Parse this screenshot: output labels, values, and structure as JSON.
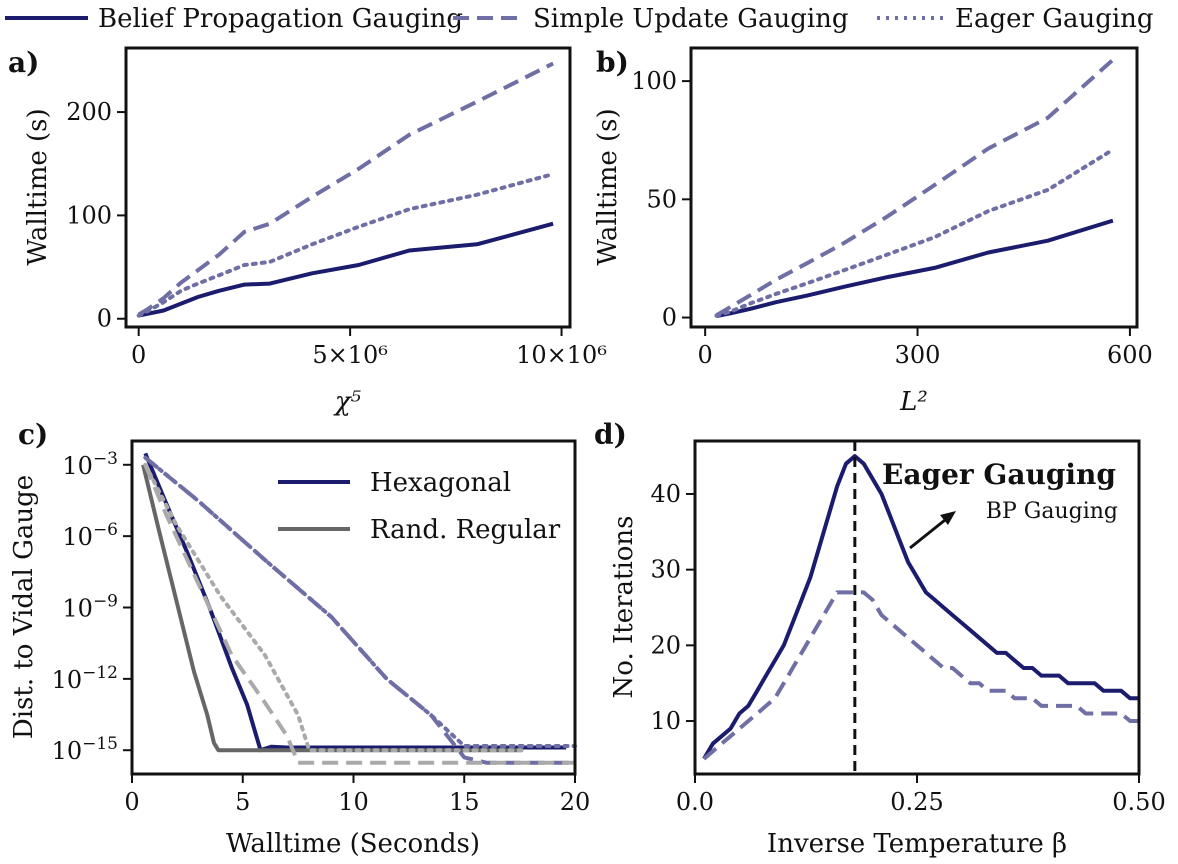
{
  "colors": {
    "navy": "#1c1c6e",
    "purple": "#6f6fa5",
    "gray_dark": "#666666",
    "gray_light": "#aaaaaa"
  },
  "legend": {
    "bp": "Belief Propagation Gauging",
    "su": "Simple Update Gauging",
    "eager": "Eager Gauging"
  },
  "chart_data": [
    {
      "panel": "a)",
      "type": "line",
      "xlabel": "χ⁵",
      "ylabel": "Walltime (s)",
      "xlim": [
        -300000.0,
        10200000.0
      ],
      "ylim": [
        -8,
        262
      ],
      "xticks": [
        0,
        5000000,
        10000000
      ],
      "xtick_labels": [
        "0",
        "5×10⁶",
        "10×10⁶"
      ],
      "yticks": [
        0,
        100,
        200
      ],
      "ytick_labels": [
        "0",
        "100",
        "200"
      ],
      "series": [
        {
          "key": "bp",
          "name": "Belief Propagation Gauging",
          "style": "solid",
          "x": [
            0,
            240000,
            590000,
            1400000,
            1900000,
            2500000,
            3100000,
            4100000,
            5200000,
            6400000,
            8000000,
            9800000
          ],
          "y": [
            3,
            5,
            8,
            21,
            27,
            33,
            34,
            44,
            52,
            66,
            72,
            92
          ]
        },
        {
          "key": "su",
          "name": "Simple Update Gauging",
          "style": "dashed",
          "x": [
            0,
            240000,
            590000,
            1000000,
            1400000,
            1900000,
            2500000,
            3100000,
            4100000,
            5200000,
            6400000,
            8000000,
            9800000
          ],
          "y": [
            4,
            10,
            20,
            35,
            47,
            62,
            84,
            92,
            118,
            145,
            178,
            210,
            247
          ]
        },
        {
          "key": "eager",
          "name": "Eager Gauging",
          "style": "dotted",
          "x": [
            0,
            240000,
            590000,
            1000000,
            1400000,
            1900000,
            2500000,
            3100000,
            4100000,
            5200000,
            6400000,
            8000000,
            9800000
          ],
          "y": [
            3,
            8,
            16,
            27,
            34,
            42,
            52,
            55,
            72,
            89,
            106,
            120,
            140
          ]
        }
      ]
    },
    {
      "panel": "b)",
      "type": "line",
      "xlabel": "L²",
      "ylabel": "Walltime (s)",
      "xlim": [
        -20,
        610
      ],
      "ylim": [
        -4,
        114
      ],
      "xticks": [
        0,
        300,
        600
      ],
      "xtick_labels": [
        "0",
        "300",
        "600"
      ],
      "yticks": [
        0,
        50,
        100
      ],
      "ytick_labels": [
        "0",
        "50",
        "100"
      ],
      "series": [
        {
          "key": "bp",
          "name": "Belief Propagation Gauging",
          "style": "solid",
          "x": [
            16,
            36,
            64,
            100,
            144,
            196,
            256,
            324,
            400,
            484,
            576
          ],
          "y": [
            0.6,
            1.8,
            3.7,
            6.5,
            9.3,
            13.0,
            17.0,
            21.0,
            27.5,
            32.5,
            41.0
          ]
        },
        {
          "key": "su",
          "name": "Simple Update Gauging",
          "style": "dashed",
          "x": [
            16,
            36,
            64,
            100,
            144,
            196,
            256,
            324,
            400,
            484,
            576
          ],
          "y": [
            1.0,
            4.5,
            9.5,
            16.0,
            23.0,
            31.5,
            42.5,
            56.0,
            71.5,
            84.5,
            109.0
          ]
        },
        {
          "key": "eager",
          "name": "Eager Gauging",
          "style": "dotted",
          "x": [
            16,
            36,
            64,
            100,
            144,
            196,
            256,
            324,
            400,
            484,
            576
          ],
          "y": [
            0.8,
            2.5,
            6.0,
            10.0,
            14.5,
            20.0,
            26.5,
            34.0,
            45.0,
            54.0,
            71.0
          ]
        }
      ]
    },
    {
      "panel": "c)",
      "type": "line",
      "yscale": "log",
      "xlabel": "Walltime (Seconds)",
      "ylabel": "Dist. to Vidal Gauge",
      "xlim": [
        0,
        20
      ],
      "ylim": [
        1e-16,
        0.01
      ],
      "xticks": [
        0,
        5,
        10,
        15,
        20
      ],
      "xtick_labels": [
        "0",
        "5",
        "10",
        "15",
        "20"
      ],
      "yticks": [
        0.001,
        1e-06,
        1e-09,
        1e-12,
        1e-15
      ],
      "ytick_labels": [
        "10",
        "10",
        "10",
        "10",
        "10"
      ],
      "ytick_exponents": [
        "−3",
        "−6",
        "−9",
        "−12",
        "−15"
      ],
      "legend_entries": {
        "hex": "Hexagonal",
        "rr": "Rand. Regular"
      },
      "series": [
        {
          "key": "hex_bp",
          "lattice": "hex",
          "method": "bp",
          "style": "solid",
          "color": "navy",
          "x": [
            0.6,
            1.5,
            2.5,
            3.5,
            4.5,
            5.2,
            5.8,
            6.3,
            7,
            10,
            15,
            19.6
          ],
          "y": [
            0.003,
            3e-05,
            2e-07,
            1e-09,
            3e-12,
            8e-14,
            1e-15,
            1.4e-15,
            1.3e-15,
            1.3e-15,
            1.3e-15,
            1.3e-15
          ]
        },
        {
          "key": "hex_su",
          "lattice": "hex",
          "method": "su",
          "style": "dashed",
          "color": "purple",
          "x": [
            0.6,
            3,
            6,
            9,
            11.5,
            13.5,
            15,
            16,
            18,
            20
          ],
          "y": [
            0.002,
            3e-05,
            1e-07,
            4e-10,
            1e-12,
            3e-14,
            5e-16,
            3e-16,
            3e-16,
            3e-16
          ]
        },
        {
          "key": "hex_eager",
          "lattice": "hex",
          "method": "eager",
          "style": "dotted",
          "color": "purple",
          "x": [
            0.6,
            3,
            6,
            9,
            11.5,
            13.5,
            15,
            17,
            20
          ],
          "y": [
            0.002,
            3e-05,
            1e-07,
            4e-10,
            1e-12,
            3e-14,
            1.5e-15,
            1.5e-15,
            1.5e-15
          ]
        },
        {
          "key": "rr_bp",
          "lattice": "rr",
          "method": "bp",
          "style": "solid",
          "color": "gray_dark",
          "x": [
            0.5,
            1.2,
            2,
            2.8,
            3.4,
            3.7,
            3.9,
            5,
            10,
            15,
            17.6
          ],
          "y": [
            0.001,
            2e-06,
            2e-09,
            2e-12,
            3e-14,
            2e-15,
            1e-15,
            1e-15,
            1e-15,
            1e-15,
            1e-15
          ]
        },
        {
          "key": "rr_su",
          "lattice": "rr",
          "method": "su",
          "style": "dashed",
          "color": "gray_light",
          "x": [
            0.6,
            1.5,
            3,
            4.5,
            6,
            7,
            7.5,
            10,
            15,
            20
          ],
          "y": [
            0.001,
            1e-05,
            1e-08,
            1e-11,
            1e-13,
            4e-15,
            3e-16,
            3e-16,
            3e-16,
            3e-16
          ]
        },
        {
          "key": "rr_eager",
          "lattice": "rr",
          "method": "eager",
          "style": "dotted",
          "color": "gray_light",
          "x": [
            0.6,
            2,
            4,
            6,
            7.5,
            8,
            10,
            15,
            17.6
          ],
          "y": [
            0.001,
            3e-06,
            3e-09,
            1e-11,
            3e-14,
            1e-15,
            1e-15,
            1e-15,
            1e-15
          ]
        }
      ]
    },
    {
      "panel": "d)",
      "type": "line",
      "xlabel": "Inverse Temperature β",
      "ylabel": "No. Iterations",
      "xlim": [
        0,
        0.5
      ],
      "ylim": [
        3,
        47
      ],
      "xticks": [
        0,
        0.25,
        0.5
      ],
      "xtick_labels": [
        "0.0",
        "0.25",
        "0.50"
      ],
      "yticks": [
        10,
        20,
        30,
        40
      ],
      "ytick_labels": [
        "10",
        "20",
        "30",
        "40"
      ],
      "vline_x": 0.18,
      "annotation": {
        "line1": "Eager Gauging",
        "line2": "BP Gauging"
      },
      "series": [
        {
          "key": "eager_iter",
          "name": "Eager Gauging",
          "style": "solid",
          "x": [
            0.01,
            0.02,
            0.03,
            0.04,
            0.05,
            0.06,
            0.07,
            0.08,
            0.09,
            0.1,
            0.11,
            0.12,
            0.13,
            0.14,
            0.15,
            0.16,
            0.17,
            0.18,
            0.19,
            0.2,
            0.21,
            0.22,
            0.23,
            0.24,
            0.25,
            0.26,
            0.27,
            0.28,
            0.29,
            0.3,
            0.31,
            0.32,
            0.33,
            0.34,
            0.35,
            0.36,
            0.37,
            0.38,
            0.39,
            0.4,
            0.41,
            0.42,
            0.43,
            0.44,
            0.45,
            0.46,
            0.47,
            0.48,
            0.49,
            0.5
          ],
          "y": [
            5,
            7,
            8,
            9,
            11,
            12,
            14,
            16,
            18,
            20,
            23,
            26,
            29,
            33,
            37,
            41,
            44,
            45,
            44,
            42,
            40,
            37,
            34,
            31,
            29,
            27,
            26,
            25,
            24,
            23,
            22,
            21,
            20,
            19,
            19,
            18,
            17,
            17,
            16,
            16,
            16,
            15,
            15,
            15,
            15,
            14,
            14,
            14,
            13,
            13
          ]
        },
        {
          "key": "bp_iter",
          "name": "BP Gauging",
          "style": "dashed",
          "x": [
            0.01,
            0.02,
            0.03,
            0.04,
            0.05,
            0.06,
            0.07,
            0.08,
            0.09,
            0.1,
            0.11,
            0.12,
            0.13,
            0.14,
            0.15,
            0.16,
            0.17,
            0.18,
            0.19,
            0.2,
            0.21,
            0.22,
            0.23,
            0.24,
            0.25,
            0.26,
            0.27,
            0.28,
            0.29,
            0.3,
            0.31,
            0.32,
            0.33,
            0.34,
            0.35,
            0.36,
            0.37,
            0.38,
            0.39,
            0.4,
            0.41,
            0.42,
            0.43,
            0.44,
            0.45,
            0.46,
            0.47,
            0.48,
            0.49,
            0.5
          ],
          "y": [
            5,
            6,
            7,
            8,
            9,
            10,
            11,
            12,
            13,
            15,
            17,
            19,
            21,
            23,
            25,
            27,
            27,
            27,
            27,
            26,
            24,
            23,
            22,
            21,
            20,
            19,
            18,
            17,
            17,
            16,
            15,
            15,
            14,
            14,
            14,
            13,
            13,
            13,
            12,
            12,
            12,
            12,
            12,
            11,
            11,
            11,
            11,
            11,
            10,
            10
          ]
        }
      ]
    }
  ]
}
